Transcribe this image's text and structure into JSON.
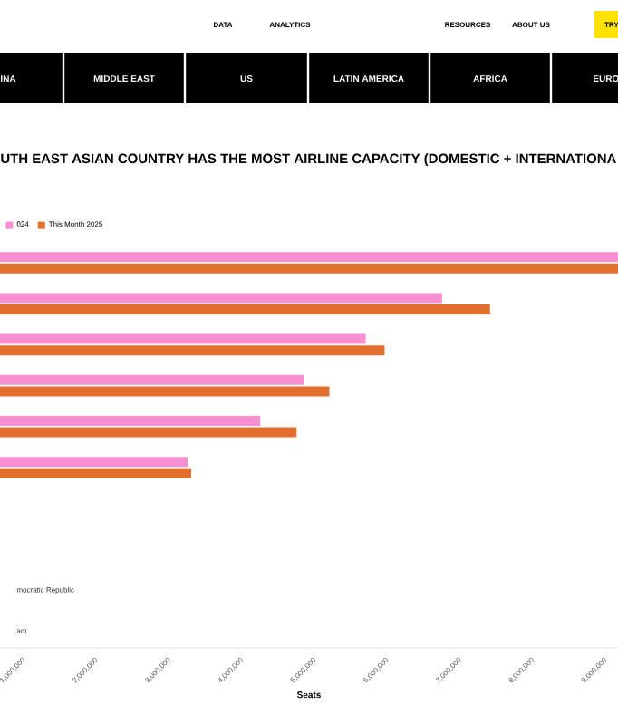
{
  "chart_data": {
    "type": "bar",
    "orientation": "horizontal",
    "title": "UTH EAST ASIAN COUNTRY HAS THE MOST AIRLINE CAPACITY (DOMESTIC + INTERNATIONA",
    "xlabel": "Seats",
    "categories": [
      null,
      null,
      null,
      null,
      null,
      null,
      null,
      null,
      "mocratic Republic",
      "am"
    ],
    "series": [
      {
        "name": "024",
        "color": "#f98fd3",
        "values": [
          9200000,
          6780000,
          5730000,
          4880000,
          4280000,
          3280000,
          null,
          null,
          null,
          null
        ]
      },
      {
        "name": "This Month 2025",
        "color": "#e36f2f",
        "values": [
          9200000,
          7440000,
          5990000,
          5230000,
          4780000,
          3330000,
          null,
          null,
          null,
          null
        ]
      }
    ],
    "xlim": [
      700000,
      9200000
    ],
    "xticks": [
      {
        "value": 1000000,
        "label": "1,000,000"
      },
      {
        "value": 2000000,
        "label": "2,000,000"
      },
      {
        "value": 3000000,
        "label": "3,000,000"
      },
      {
        "value": 4000000,
        "label": "4,000,000"
      },
      {
        "value": 5000000,
        "label": "5,000,000"
      },
      {
        "value": 6000000,
        "label": "6,000,000"
      },
      {
        "value": 7000000,
        "label": "7,000,000"
      },
      {
        "value": 8000000,
        "label": "8,000,000"
      },
      {
        "value": 9000000,
        "label": "9,000,000"
      }
    ],
    "legend": "top left",
    "grid": false,
    "annotations": [
      "DATA",
      "ANALYTICS",
      "RESOURCES",
      "ABOUT US",
      "TRY",
      "INA",
      "MIDDLE EAST",
      "US",
      "LATIN AMERICA",
      "AFRICA",
      "EURO"
    ]
  }
}
